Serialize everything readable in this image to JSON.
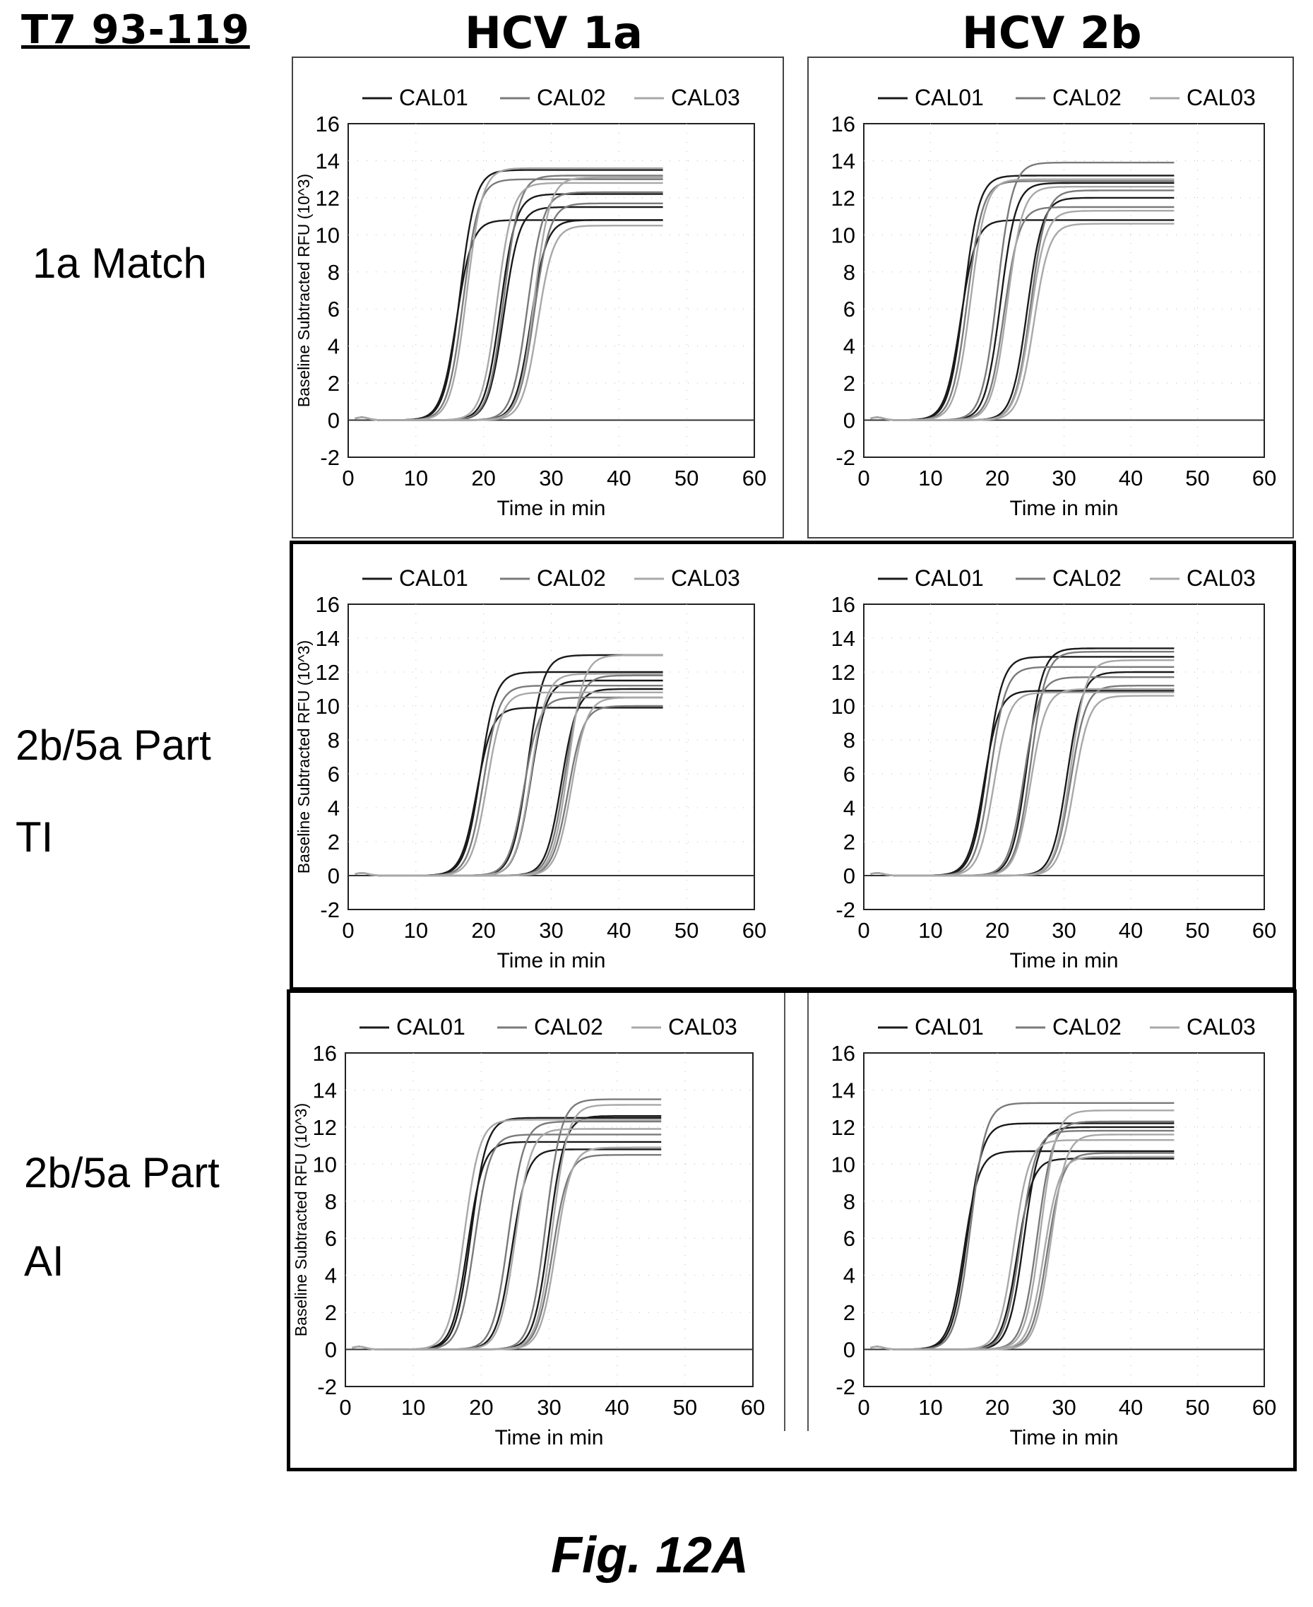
{
  "figure": {
    "title": "T7 93-119",
    "caption": "Fig. 12A",
    "columns": [
      "HCV 1a",
      "HCV 2b"
    ],
    "rows": [
      {
        "lines": [
          "1a Match"
        ]
      },
      {
        "lines": [
          "2b/5a Part",
          "TI"
        ]
      },
      {
        "lines": [
          "2b/5a Part",
          "AI"
        ]
      }
    ]
  },
  "colors": {
    "CAL01": "#1a1a1a",
    "CAL02": "#7a7a7a",
    "CAL03": "#a8a8a8"
  },
  "chart_data": [
    {
      "id": "r1c1",
      "row": "1a Match",
      "column": "HCV 1a",
      "type": "line",
      "xlabel": "Time in min",
      "ylabel": "Baseline Subtracted RFU (10^3)",
      "xlim": [
        0,
        60
      ],
      "ylim": [
        -2,
        16
      ],
      "xticks": [
        0,
        10,
        20,
        30,
        40,
        50,
        60
      ],
      "yticks": [
        -2,
        0,
        2,
        4,
        6,
        8,
        10,
        12,
        14,
        16
      ],
      "legend": [
        "CAL01",
        "CAL02",
        "CAL03"
      ],
      "legend_position": "top",
      "series": [
        {
          "name": "CAL01",
          "curves": [
            {
              "midpoint": 16.5,
              "plateau": 13.5
            },
            {
              "midpoint": 16.0,
              "plateau": 10.8
            },
            {
              "midpoint": 22.5,
              "plateau": 12.2
            },
            {
              "midpoint": 23.0,
              "plateau": 11.5
            },
            {
              "midpoint": 27.0,
              "plateau": 10.8
            }
          ]
        },
        {
          "name": "CAL02",
          "curves": [
            {
              "midpoint": 17.0,
              "plateau": 13.0
            },
            {
              "midpoint": 23.0,
              "plateau": 13.2
            },
            {
              "midpoint": 27.5,
              "plateau": 11.7
            },
            {
              "midpoint": 26.5,
              "plateau": 12.3
            }
          ]
        },
        {
          "name": "CAL03",
          "curves": [
            {
              "midpoint": 17.5,
              "plateau": 13.6
            },
            {
              "midpoint": 22.0,
              "plateau": 12.8
            },
            {
              "midpoint": 27.5,
              "plateau": 13.1
            },
            {
              "midpoint": 28.0,
              "plateau": 10.5
            }
          ]
        }
      ]
    },
    {
      "id": "r1c2",
      "row": "1a Match",
      "column": "HCV 2b",
      "type": "line",
      "xlabel": "Time in min",
      "ylabel": "",
      "xlim": [
        0,
        60
      ],
      "ylim": [
        -2,
        16
      ],
      "xticks": [
        0,
        10,
        20,
        30,
        40,
        50,
        60
      ],
      "yticks": [
        -2,
        0,
        2,
        4,
        6,
        8,
        10,
        12,
        14,
        16
      ],
      "legend": [
        "CAL01",
        "CAL02",
        "CAL03"
      ],
      "legend_position": "top",
      "series": [
        {
          "name": "CAL01",
          "curves": [
            {
              "midpoint": 15.0,
              "plateau": 13.2
            },
            {
              "midpoint": 14.5,
              "plateau": 10.8
            },
            {
              "midpoint": 20.5,
              "plateau": 12.8
            },
            {
              "midpoint": 24.5,
              "plateau": 12.0
            }
          ]
        },
        {
          "name": "CAL02",
          "curves": [
            {
              "midpoint": 15.5,
              "plateau": 12.9
            },
            {
              "midpoint": 20.0,
              "plateau": 13.9
            },
            {
              "midpoint": 21.0,
              "plateau": 11.5
            },
            {
              "midpoint": 25.0,
              "plateau": 12.4
            }
          ]
        },
        {
          "name": "CAL03",
          "curves": [
            {
              "midpoint": 16.0,
              "plateau": 13.0
            },
            {
              "midpoint": 21.5,
              "plateau": 12.6
            },
            {
              "midpoint": 25.0,
              "plateau": 11.3
            },
            {
              "midpoint": 25.5,
              "plateau": 10.6
            }
          ]
        }
      ]
    },
    {
      "id": "r2c1",
      "row": "2b/5a Part TI",
      "column": "HCV 1a",
      "type": "line",
      "xlabel": "Time in min",
      "ylabel": "Baseline Subtracted RFU (10^3)",
      "xlim": [
        0,
        60
      ],
      "ylim": [
        -2,
        16
      ],
      "xticks": [
        0,
        10,
        20,
        30,
        40,
        50,
        60
      ],
      "yticks": [
        -2,
        0,
        2,
        4,
        6,
        8,
        10,
        12,
        14,
        16
      ],
      "legend": [
        "CAL01",
        "CAL02",
        "CAL03"
      ],
      "legend_position": "top",
      "series": [
        {
          "name": "CAL01",
          "curves": [
            {
              "midpoint": 19.5,
              "plateau": 12.0
            },
            {
              "midpoint": 19.0,
              "plateau": 9.9
            },
            {
              "midpoint": 26.5,
              "plateau": 13.0
            },
            {
              "midpoint": 27.0,
              "plateau": 11.5
            },
            {
              "midpoint": 31.5,
              "plateau": 11.0
            }
          ]
        },
        {
          "name": "CAL02",
          "curves": [
            {
              "midpoint": 20.0,
              "plateau": 11.2
            },
            {
              "midpoint": 26.0,
              "plateau": 10.5
            },
            {
              "midpoint": 32.0,
              "plateau": 11.8
            },
            {
              "midpoint": 32.5,
              "plateau": 10.0
            }
          ]
        },
        {
          "name": "CAL03",
          "curves": [
            {
              "midpoint": 20.5,
              "plateau": 10.8
            },
            {
              "midpoint": 27.0,
              "plateau": 11.9
            },
            {
              "midpoint": 32.5,
              "plateau": 13.0
            },
            {
              "midpoint": 33.0,
              "plateau": 10.5
            }
          ]
        }
      ]
    },
    {
      "id": "r2c2",
      "row": "2b/5a Part TI",
      "column": "HCV 2b",
      "type": "line",
      "xlabel": "Time in min",
      "ylabel": "",
      "xlim": [
        0,
        60
      ],
      "ylim": [
        -2,
        16
      ],
      "xticks": [
        0,
        10,
        20,
        30,
        40,
        50,
        60
      ],
      "yticks": [
        -2,
        0,
        2,
        4,
        6,
        8,
        10,
        12,
        14,
        16
      ],
      "legend": [
        "CAL01",
        "CAL02",
        "CAL03"
      ],
      "legend_position": "top",
      "series": [
        {
          "name": "CAL01",
          "curves": [
            {
              "midpoint": 18.5,
              "plateau": 12.9
            },
            {
              "midpoint": 18.0,
              "plateau": 10.9
            },
            {
              "midpoint": 24.5,
              "plateau": 13.4
            },
            {
              "midpoint": 30.5,
              "plateau": 12.0
            }
          ]
        },
        {
          "name": "CAL02",
          "curves": [
            {
              "midpoint": 19.0,
              "plateau": 12.3
            },
            {
              "midpoint": 24.0,
              "plateau": 11.7
            },
            {
              "midpoint": 25.0,
              "plateau": 13.2
            },
            {
              "midpoint": 31.0,
              "plateau": 11.2
            }
          ]
        },
        {
          "name": "CAL03",
          "curves": [
            {
              "midpoint": 19.5,
              "plateau": 10.8
            },
            {
              "midpoint": 25.0,
              "plateau": 11.0
            },
            {
              "midpoint": 31.0,
              "plateau": 12.7
            },
            {
              "midpoint": 31.5,
              "plateau": 10.6
            }
          ]
        }
      ]
    },
    {
      "id": "r3c1",
      "row": "2b/5a Part AI",
      "column": "HCV 1a",
      "type": "line",
      "xlabel": "Time in min",
      "ylabel": "Baseline Subtracted RFU (10^3)",
      "xlim": [
        0,
        60
      ],
      "ylim": [
        -2,
        16
      ],
      "xticks": [
        0,
        10,
        20,
        30,
        40,
        50,
        60
      ],
      "yticks": [
        -2,
        0,
        2,
        4,
        6,
        8,
        10,
        12,
        14,
        16
      ],
      "legend": [
        "CAL01",
        "CAL02",
        "CAL03"
      ],
      "legend_position": "top",
      "series": [
        {
          "name": "CAL01",
          "curves": [
            {
              "midpoint": 18.5,
              "plateau": 12.5
            },
            {
              "midpoint": 18.0,
              "plateau": 11.2
            },
            {
              "midpoint": 24.5,
              "plateau": 10.8
            },
            {
              "midpoint": 30.0,
              "plateau": 12.6
            }
          ]
        },
        {
          "name": "CAL02",
          "curves": [
            {
              "midpoint": 19.0,
              "plateau": 11.6
            },
            {
              "midpoint": 24.0,
              "plateau": 12.3
            },
            {
              "midpoint": 29.5,
              "plateau": 13.5
            },
            {
              "midpoint": 30.5,
              "plateau": 10.5
            }
          ]
        },
        {
          "name": "CAL03",
          "curves": [
            {
              "midpoint": 17.5,
              "plateau": 12.4
            },
            {
              "midpoint": 25.0,
              "plateau": 11.9
            },
            {
              "midpoint": 30.5,
              "plateau": 13.2
            },
            {
              "midpoint": 31.0,
              "plateau": 10.9
            }
          ]
        }
      ]
    },
    {
      "id": "r3c2",
      "row": "2b/5a Part AI",
      "column": "HCV 2b",
      "type": "line",
      "xlabel": "Time in min",
      "ylabel": "",
      "xlim": [
        0,
        60
      ],
      "ylim": [
        -2,
        16
      ],
      "xticks": [
        0,
        10,
        20,
        30,
        40,
        50,
        60
      ],
      "yticks": [
        -2,
        0,
        2,
        4,
        6,
        8,
        10,
        12,
        14,
        16
      ],
      "legend": [
        "CAL01",
        "CAL02",
        "CAL03"
      ],
      "legend_position": "top",
      "series": [
        {
          "name": "CAL01",
          "curves": [
            {
              "midpoint": 15.5,
              "plateau": 12.2
            },
            {
              "midpoint": 15.0,
              "plateau": 10.7
            },
            {
              "midpoint": 23.0,
              "plateau": 10.3
            },
            {
              "midpoint": 24.0,
              "plateau": 12.0
            }
          ]
        },
        {
          "name": "CAL02",
          "curves": [
            {
              "midpoint": 16.0,
              "plateau": 13.3
            },
            {
              "midpoint": 23.5,
              "plateau": 11.8
            },
            {
              "midpoint": 26.0,
              "plateau": 12.3
            },
            {
              "midpoint": 27.5,
              "plateau": 10.6
            }
          ]
        },
        {
          "name": "CAL03",
          "curves": [
            {
              "midpoint": 22.5,
              "plateau": 11.3
            },
            {
              "midpoint": 26.5,
              "plateau": 12.9
            },
            {
              "midpoint": 27.0,
              "plateau": 10.4
            },
            {
              "midpoint": 28.0,
              "plateau": 11.6
            }
          ]
        }
      ]
    }
  ]
}
